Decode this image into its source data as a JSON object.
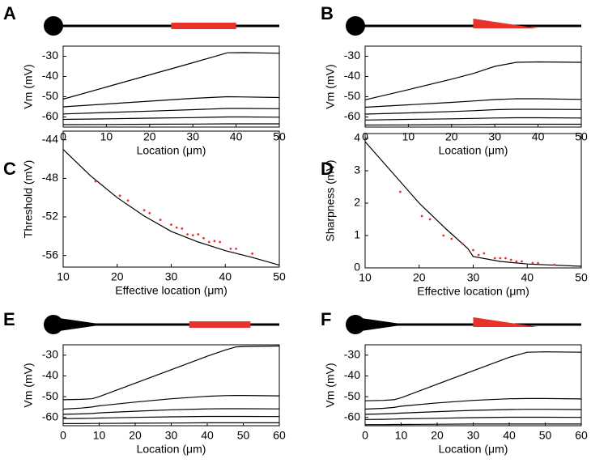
{
  "chart_data": [
    {
      "type": "line",
      "panel": "A",
      "xlabel": "Location (μm)",
      "ylabel": "Vm (mV)",
      "xlim": [
        0,
        50
      ],
      "xticks": [
        0,
        10,
        20,
        30,
        40,
        50
      ],
      "ylim": [
        -65,
        -25
      ],
      "yticks": [
        -60,
        -50,
        -40,
        -30
      ],
      "x": [
        0,
        10,
        20,
        30,
        38,
        42,
        50
      ],
      "series": [
        {
          "color": "#000000",
          "values": [
            -51.2,
            -45.2,
            -39.2,
            -33.2,
            -28.3,
            -28.2,
            -28.5
          ]
        },
        {
          "color": "#000000",
          "values": [
            -55,
            -53.6,
            -52.2,
            -50.8,
            -50,
            -50.1,
            -50.4
          ]
        },
        {
          "color": "#000000",
          "values": [
            -58.5,
            -57.8,
            -57.1,
            -56.4,
            -55.8,
            -55.8,
            -55.9
          ]
        },
        {
          "color": "#000000",
          "values": [
            -61.2,
            -60.9,
            -60.6,
            -60.3,
            -60,
            -60,
            -60.1
          ]
        },
        {
          "color": "#000000",
          "values": [
            -63.8,
            -63.7,
            -63.6,
            -63.5,
            -63.4,
            -63.4,
            -63.4
          ]
        }
      ],
      "stimulus": {
        "shape": "bar",
        "start": 25,
        "end": 40,
        "color": "#e8332c"
      },
      "tapered": false
    },
    {
      "type": "line",
      "panel": "B",
      "xlabel": "Location (μm)",
      "ylabel": "Vm (mV)",
      "xlim": [
        0,
        50
      ],
      "xticks": [
        0,
        10,
        20,
        30,
        40,
        50
      ],
      "ylim": [
        -65,
        -25
      ],
      "yticks": [
        -60,
        -50,
        -40,
        -30
      ],
      "x": [
        0,
        10,
        20,
        25,
        30,
        35,
        40,
        50
      ],
      "series": [
        {
          "color": "#000000",
          "values": [
            -51.5,
            -46.5,
            -41.3,
            -38.5,
            -35,
            -33,
            -32.8,
            -33
          ]
        },
        {
          "color": "#000000",
          "values": [
            -55.2,
            -54,
            -52.8,
            -52.1,
            -51.4,
            -51,
            -51,
            -51.3
          ]
        },
        {
          "color": "#000000",
          "values": [
            -58.6,
            -58,
            -57.3,
            -56.9,
            -56.4,
            -56.2,
            -56.2,
            -56.3
          ]
        },
        {
          "color": "#000000",
          "values": [
            -61.5,
            -61.2,
            -60.9,
            -60.7,
            -60.5,
            -60.4,
            -60.4,
            -60.5
          ]
        },
        {
          "color": "#000000",
          "values": [
            -64,
            -63.9,
            -63.8,
            -63.7,
            -63.6,
            -63.6,
            -63.6,
            -63.6
          ]
        }
      ],
      "stimulus": {
        "shape": "triangle",
        "start": 25,
        "end": 40,
        "color": "#e8332c"
      },
      "tapered": false
    },
    {
      "type": "line_scatter",
      "panel": "C",
      "xlabel": "Effective location (μm)",
      "ylabel": "Threshold (mV)",
      "xlim": [
        10,
        50
      ],
      "xticks": [
        10,
        20,
        30,
        40,
        50
      ],
      "ylim": [
        -57.2,
        -43.1
      ],
      "yticks": [
        -56,
        -52,
        -48,
        -44
      ],
      "line": {
        "color": "#000000",
        "x": [
          10,
          15,
          20,
          25,
          30,
          35,
          40,
          45,
          50
        ],
        "values": [
          -45,
          -47.7,
          -50,
          -51.9,
          -53.5,
          -54.6,
          -55.5,
          -56.2,
          -57
        ]
      },
      "points": {
        "color": "#e8332c",
        "x": [
          16,
          20.5,
          22,
          25,
          26,
          28,
          30,
          31,
          32,
          33,
          34,
          35,
          36,
          37,
          38,
          39,
          41,
          42,
          45
        ],
        "values": [
          -48.3,
          -49.8,
          -50.3,
          -51.3,
          -51.6,
          -52.3,
          -52.8,
          -53.1,
          -53.2,
          -53.8,
          -53.9,
          -53.8,
          -54.2,
          -54.6,
          -54.5,
          -54.6,
          -55.3,
          -55.3,
          -55.8
        ]
      }
    },
    {
      "type": "line_scatter",
      "panel": "D",
      "xlabel": "Effective location (μm)",
      "ylabel": "Sharpness (mV)",
      "xlim": [
        10,
        50
      ],
      "xticks": [
        10,
        20,
        30,
        40,
        50
      ],
      "ylim": [
        0,
        4.15
      ],
      "yticks": [
        0,
        1,
        2,
        3,
        4
      ],
      "line": {
        "color": "#000000",
        "x": [
          10,
          15,
          20,
          25,
          29,
          30,
          35,
          40,
          50
        ],
        "values": [
          3.9,
          2.95,
          2,
          1.2,
          0.6,
          0.35,
          0.2,
          0.12,
          0.05
        ]
      },
      "points": {
        "color": "#e8332c",
        "x": [
          16.5,
          20.5,
          22,
          24.5,
          26,
          28,
          30,
          31,
          32,
          34,
          35,
          36,
          37,
          38,
          39,
          41,
          42,
          45
        ],
        "values": [
          2.35,
          1.6,
          1.5,
          1,
          0.9,
          0.75,
          0.55,
          0.4,
          0.45,
          0.3,
          0.3,
          0.3,
          0.25,
          0.2,
          0.2,
          0.15,
          0.15,
          0.1
        ]
      }
    },
    {
      "type": "line",
      "panel": "E",
      "xlabel": "Location (μm)",
      "ylabel": "Vm (mV)",
      "xlim": [
        0,
        60
      ],
      "xticks": [
        0,
        10,
        20,
        30,
        40,
        50,
        60
      ],
      "ylim": [
        -64,
        -25
      ],
      "yticks": [
        -60,
        -50,
        -40,
        -30
      ],
      "x": [
        0,
        5,
        8,
        10,
        20,
        30,
        40,
        45,
        48,
        50,
        60
      ],
      "series": [
        {
          "color": "#000000",
          "values": [
            -51.5,
            -51.3,
            -51,
            -50,
            -43.5,
            -37,
            -30.5,
            -27.5,
            -26,
            -25.8,
            -25.6
          ]
        },
        {
          "color": "#000000",
          "values": [
            -56,
            -55.5,
            -55,
            -54.4,
            -52.6,
            -51,
            -49.8,
            -49.5,
            -49.4,
            -49.4,
            -49.6
          ]
        },
        {
          "color": "#000000",
          "values": [
            -58.5,
            -58.3,
            -58.1,
            -57.8,
            -57,
            -56.3,
            -55.9,
            -55.8,
            -55.8,
            -55.8,
            -55.9
          ]
        },
        {
          "color": "#000000",
          "values": [
            -60.6,
            -60.5,
            -60.4,
            -60.3,
            -60,
            -59.7,
            -59.5,
            -59.5,
            -59.5,
            -59.5,
            -59.6
          ]
        },
        {
          "color": "#000000",
          "values": [
            -63,
            -63,
            -62.9,
            -62.9,
            -62.8,
            -62.7,
            -62.6,
            -62.6,
            -62.6,
            -62.6,
            -62.6
          ]
        }
      ],
      "stimulus": {
        "shape": "bar",
        "start": 35,
        "end": 52,
        "color": "#e8332c"
      },
      "tapered": true
    },
    {
      "type": "line",
      "panel": "F",
      "xlabel": "Location (μm)",
      "ylabel": "Vm (mV)",
      "xlim": [
        0,
        60
      ],
      "xticks": [
        0,
        10,
        20,
        30,
        40,
        50,
        60
      ],
      "ylim": [
        -64,
        -25
      ],
      "yticks": [
        -60,
        -50,
        -40,
        -30
      ],
      "x": [
        0,
        5,
        8,
        10,
        20,
        30,
        40,
        45,
        50,
        60
      ],
      "series": [
        {
          "color": "#000000",
          "values": [
            -52,
            -51.8,
            -51.5,
            -50.5,
            -44,
            -37.5,
            -31,
            -28.6,
            -28.4,
            -28.6
          ]
        },
        {
          "color": "#000000",
          "values": [
            -56,
            -55.6,
            -55.2,
            -54.6,
            -53,
            -51.8,
            -51,
            -50.9,
            -50.9,
            -51.1
          ]
        },
        {
          "color": "#000000",
          "values": [
            -58.5,
            -58.3,
            -58.1,
            -57.9,
            -57.2,
            -56.6,
            -56.2,
            -56.1,
            -56.1,
            -56.2
          ]
        },
        {
          "color": "#000000",
          "values": [
            -61,
            -60.9,
            -60.8,
            -60.7,
            -60.4,
            -60.1,
            -59.9,
            -59.9,
            -59.9,
            -60
          ]
        },
        {
          "color": "#000000",
          "values": [
            -63.5,
            -63.5,
            -63.4,
            -63.4,
            -63.3,
            -63.2,
            -63.2,
            -63.2,
            -63.2,
            -63.2
          ]
        }
      ],
      "stimulus": {
        "shape": "triangle",
        "start": 30,
        "end": 48,
        "color": "#e8332c"
      },
      "tapered": true
    }
  ]
}
